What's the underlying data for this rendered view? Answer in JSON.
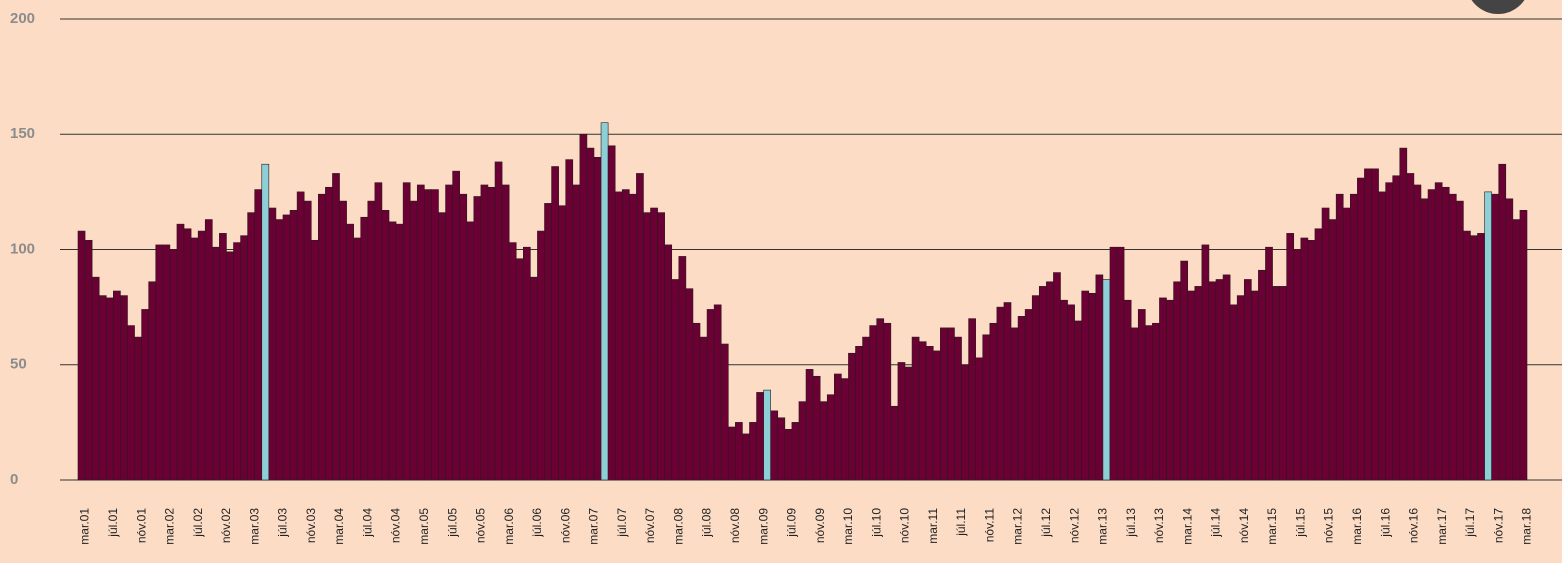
{
  "chart_data": {
    "type": "bar",
    "categories": [
      "mar.01",
      null,
      null,
      null,
      "júl.01",
      null,
      null,
      null,
      "nóv.01",
      null,
      null,
      null,
      "mar.02",
      null,
      null,
      null,
      "júl.02",
      null,
      null,
      null,
      "nóv.02",
      null,
      null,
      null,
      "mar.03",
      null,
      null,
      null,
      "júl.03",
      null,
      null,
      null,
      "nóv.03",
      null,
      null,
      null,
      "mar.04",
      null,
      null,
      null,
      "júl.04",
      null,
      null,
      null,
      "nóv.04",
      null,
      null,
      null,
      "mar.05",
      null,
      null,
      null,
      "júl.05",
      null,
      null,
      null,
      "nóv.05",
      null,
      null,
      null,
      "mar.06",
      null,
      null,
      null,
      "júl.06",
      null,
      null,
      null,
      "nóv.06",
      null,
      null,
      null,
      "mar.07",
      null,
      null,
      null,
      "júl.07",
      null,
      null,
      null,
      "nóv.07",
      null,
      null,
      null,
      "mar.08",
      null,
      null,
      null,
      "júl.08",
      null,
      null,
      null,
      "nóv.08",
      null,
      null,
      null,
      "mar.09",
      null,
      null,
      null,
      "júl.09",
      null,
      null,
      null,
      "nóv.09",
      null,
      null,
      null,
      "mar.10",
      null,
      null,
      null,
      "júl.10",
      null,
      null,
      null,
      "nóv.10",
      null,
      null,
      null,
      "mar.11",
      null,
      null,
      null,
      "júl.11",
      null,
      null,
      null,
      "nóv.11",
      null,
      null,
      null,
      "mar.12",
      null,
      null,
      null,
      "júl.12",
      null,
      null,
      null,
      "nóv.12",
      null,
      null,
      null,
      "mar.13",
      null,
      null,
      null,
      "júl.13",
      null,
      null,
      null,
      "nóv.13",
      null,
      null,
      null,
      "mar.14",
      null,
      null,
      null,
      "júl.14",
      null,
      null,
      null,
      "nóv.14",
      null,
      null,
      null,
      "mar.15",
      null,
      null,
      null,
      "júl.15",
      null,
      null,
      null,
      "nóv.15",
      null,
      null,
      null,
      "mar.16",
      null,
      null,
      null,
      "júl.16",
      null,
      null,
      null,
      "nóv.16",
      null,
      null,
      null,
      "mar.17",
      null,
      null,
      null,
      "júl.17",
      null,
      null,
      null,
      "nóv.17",
      null,
      null,
      null,
      "mar.18"
    ],
    "values": [
      108,
      104,
      88,
      80,
      79,
      82,
      80,
      67,
      62,
      74,
      86,
      102,
      102,
      100,
      111,
      109,
      105,
      108,
      113,
      101,
      107,
      99,
      103,
      106,
      116,
      126,
      137,
      118,
      113,
      115,
      117,
      125,
      121,
      104,
      124,
      127,
      133,
      121,
      111,
      105,
      114,
      121,
      129,
      117,
      112,
      111,
      129,
      121,
      128,
      126,
      126,
      116,
      128,
      134,
      124,
      112,
      123,
      128,
      127,
      138,
      128,
      103,
      96,
      101,
      88,
      108,
      120,
      136,
      119,
      139,
      128,
      150,
      144,
      140,
      155,
      145,
      125,
      126,
      124,
      133,
      116,
      118,
      116,
      102,
      87,
      97,
      83,
      68,
      62,
      74,
      76,
      59,
      23,
      25,
      20,
      25,
      38,
      39,
      30,
      27,
      22,
      25,
      34,
      48,
      45,
      34,
      37,
      46,
      44,
      55,
      58,
      62,
      67,
      70,
      68,
      32,
      51,
      49,
      62,
      60,
      58,
      56,
      66,
      66,
      62,
      50,
      70,
      53,
      63,
      68,
      75,
      77,
      66,
      71,
      74,
      80,
      84,
      86,
      90,
      78,
      76,
      69,
      82,
      81,
      89,
      87,
      101,
      101,
      78,
      66,
      74,
      67,
      68,
      79,
      78,
      86,
      95,
      82,
      84,
      102,
      86,
      87,
      89,
      76,
      80,
      87,
      82,
      91,
      101,
      84,
      84,
      107,
      100,
      105,
      104,
      109,
      118,
      113,
      124,
      118,
      124,
      131,
      135,
      135,
      125,
      129,
      132,
      144,
      133,
      128,
      122,
      126,
      129,
      127,
      124,
      121,
      108,
      106,
      107,
      125,
      124,
      137,
      122,
      113,
      117
    ],
    "colors": [
      "#6b0035",
      "#6b0035",
      "#6b0035",
      "#6b0035",
      "#6b0035",
      "#6b0035",
      "#6b0035",
      "#6b0035",
      "#6b0035",
      "#6b0035",
      "#6b0035",
      "#6b0035",
      "#6b0035",
      "#6b0035",
      "#6b0035",
      "#6b0035",
      "#6b0035",
      "#6b0035",
      "#6b0035",
      "#6b0035",
      "#6b0035",
      "#6b0035",
      "#6b0035",
      "#6b0035",
      "#6b0035",
      "#6b0035",
      "#8ccfd6",
      "#6b0035",
      "#6b0035",
      "#6b0035",
      "#6b0035",
      "#6b0035",
      "#6b0035",
      "#6b0035",
      "#6b0035",
      "#6b0035",
      "#6b0035",
      "#6b0035",
      "#6b0035",
      "#6b0035",
      "#6b0035",
      "#6b0035",
      "#6b0035",
      "#6b0035",
      "#6b0035",
      "#6b0035",
      "#6b0035",
      "#6b0035",
      "#6b0035",
      "#6b0035",
      "#6b0035",
      "#6b0035",
      "#6b0035",
      "#6b0035",
      "#6b0035",
      "#6b0035",
      "#6b0035",
      "#6b0035",
      "#6b0035",
      "#6b0035",
      "#6b0035",
      "#6b0035",
      "#6b0035",
      "#6b0035",
      "#6b0035",
      "#6b0035",
      "#6b0035",
      "#6b0035",
      "#6b0035",
      "#6b0035",
      "#6b0035",
      "#6b0035",
      "#6b0035",
      "#6b0035",
      "#8ccfd6",
      "#6b0035",
      "#6b0035",
      "#6b0035",
      "#6b0035",
      "#6b0035",
      "#6b0035",
      "#6b0035",
      "#6b0035",
      "#6b0035",
      "#6b0035",
      "#6b0035",
      "#6b0035",
      "#6b0035",
      "#6b0035",
      "#6b0035",
      "#6b0035",
      "#6b0035",
      "#6b0035",
      "#6b0035",
      "#6b0035",
      "#6b0035",
      "#6b0035",
      "#8ccfd6",
      "#6b0035",
      "#6b0035",
      "#6b0035",
      "#6b0035",
      "#6b0035",
      "#6b0035",
      "#6b0035",
      "#6b0035",
      "#6b0035",
      "#6b0035",
      "#6b0035",
      "#6b0035",
      "#6b0035",
      "#6b0035",
      "#6b0035",
      "#6b0035",
      "#6b0035",
      "#6b0035",
      "#6b0035",
      "#6b0035",
      "#6b0035",
      "#6b0035",
      "#6b0035",
      "#6b0035",
      "#6b0035",
      "#6b0035",
      "#6b0035",
      "#6b0035",
      "#6b0035",
      "#6b0035",
      "#6b0035",
      "#6b0035",
      "#6b0035",
      "#6b0035",
      "#6b0035",
      "#6b0035",
      "#6b0035",
      "#6b0035",
      "#6b0035",
      "#6b0035",
      "#6b0035",
      "#6b0035",
      "#6b0035",
      "#6b0035",
      "#6b0035",
      "#6b0035",
      "#6b0035",
      "#8ccfd6",
      "#6b0035",
      "#6b0035",
      "#6b0035",
      "#6b0035",
      "#6b0035",
      "#6b0035",
      "#6b0035",
      "#6b0035",
      "#6b0035",
      "#6b0035",
      "#6b0035",
      "#6b0035",
      "#6b0035",
      "#6b0035",
      "#6b0035",
      "#6b0035",
      "#6b0035",
      "#6b0035",
      "#6b0035",
      "#6b0035",
      "#6b0035",
      "#6b0035",
      "#6b0035",
      "#6b0035",
      "#6b0035",
      "#6b0035",
      "#6b0035",
      "#6b0035",
      "#6b0035",
      "#6b0035",
      "#6b0035",
      "#6b0035",
      "#6b0035",
      "#6b0035",
      "#6b0035",
      "#6b0035",
      "#6b0035",
      "#6b0035",
      "#6b0035",
      "#6b0035",
      "#6b0035",
      "#6b0035",
      "#6b0035",
      "#6b0035",
      "#6b0035",
      "#6b0035",
      "#6b0035",
      "#6b0035",
      "#6b0035",
      "#6b0035",
      "#6b0035",
      "#6b0035",
      "#6b0035",
      "#8ccfd6",
      "#6b0035",
      "#6b0035",
      "#6b0035",
      "#6b0035",
      "#6b0035"
    ],
    "ylim": [
      0,
      200
    ],
    "yticks": [
      0,
      50,
      100,
      150,
      200
    ],
    "grid": true
  }
}
